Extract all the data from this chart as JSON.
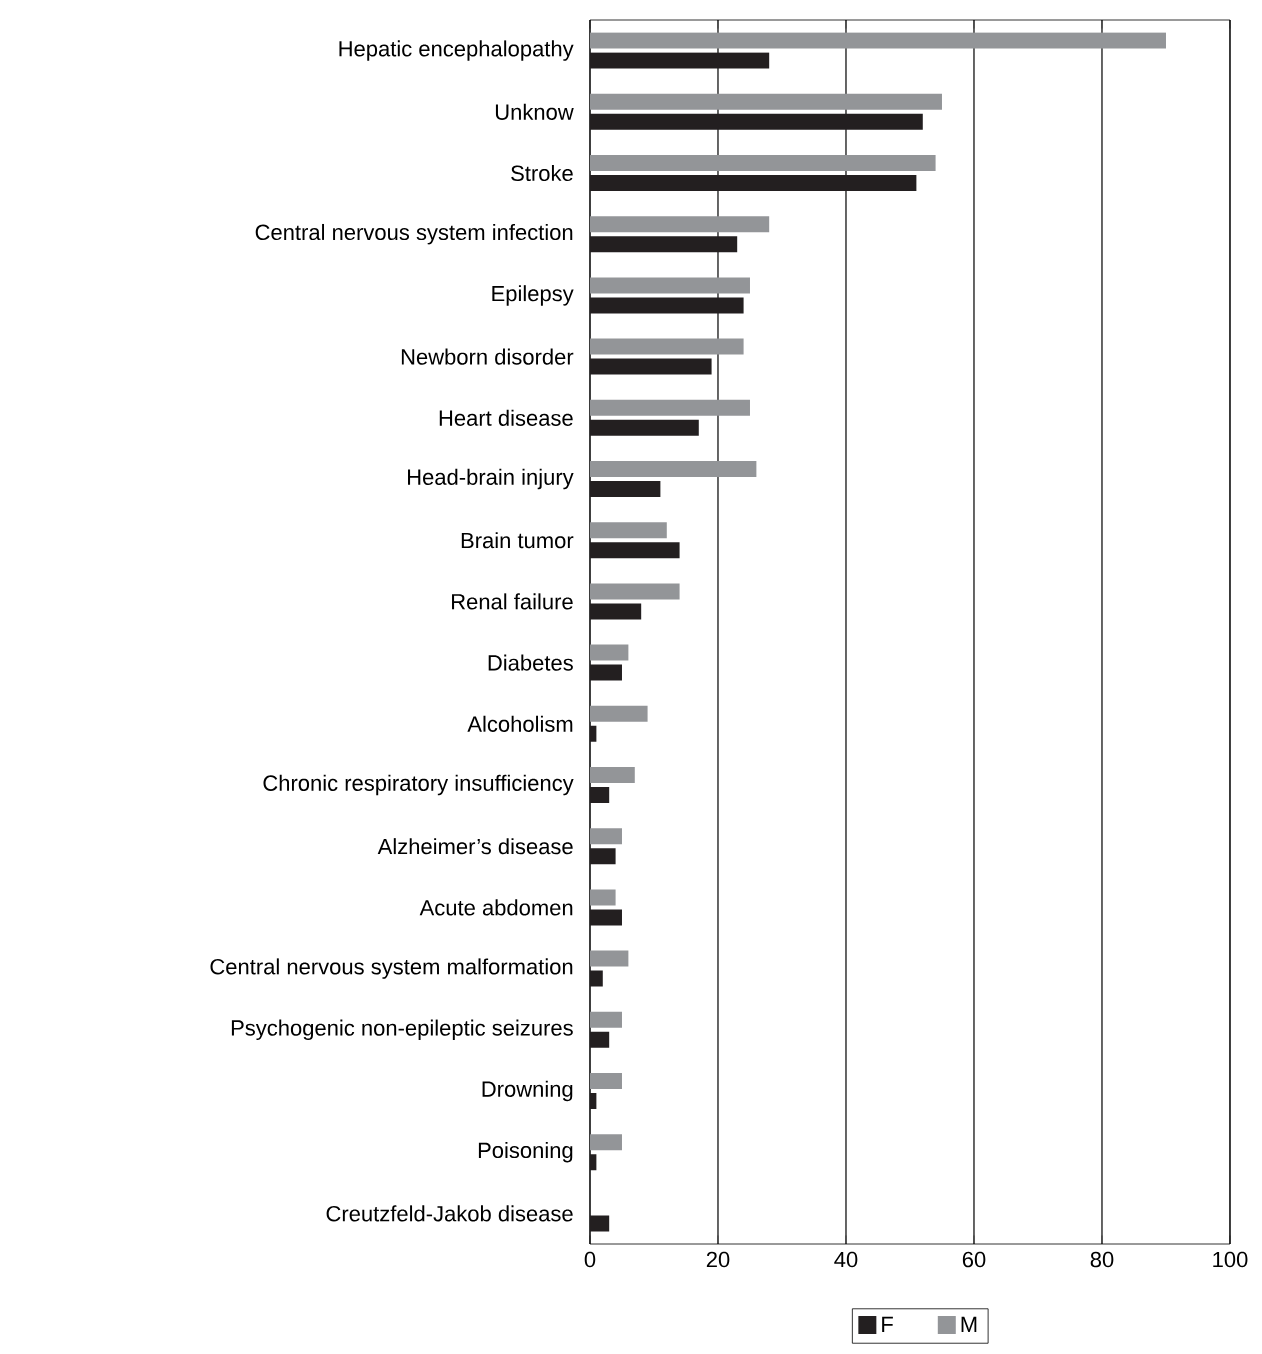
{
  "chart_data": {
    "type": "bar",
    "orientation": "horizontal",
    "categories": [
      "Hepatic encephalopathy",
      "Unknow",
      "Stroke",
      "Central nervous system infection",
      "Epilepsy",
      "Newborn disorder",
      "Heart disease",
      "Head-brain injury",
      "Brain tumor",
      "Renal failure",
      "Diabetes",
      "Alcoholism",
      "Chronic respiratory insufficiency",
      "Alzheimer’s disease",
      "Acute abdomen",
      "Central nervous system malformation",
      "Psychogenic non-epileptic seizures",
      "Drowning",
      "Poisoning",
      "Creutzfeld-Jakob disease"
    ],
    "series": [
      {
        "name": "F",
        "color": "#231f20",
        "values": [
          28,
          52,
          51,
          23,
          24,
          19,
          17,
          11,
          14,
          8,
          5,
          1,
          3,
          4,
          5,
          2,
          3,
          1,
          1,
          3
        ]
      },
      {
        "name": "M",
        "color": "#939598",
        "values": [
          90,
          55,
          54,
          28,
          25,
          24,
          25,
          26,
          12,
          14,
          6,
          9,
          7,
          5,
          4,
          6,
          5,
          5,
          5,
          0
        ]
      }
    ],
    "xlim": [
      0,
      100
    ],
    "xticks": [
      0,
      20,
      40,
      60,
      80,
      100
    ],
    "grid": "x",
    "legend": "bottom"
  }
}
